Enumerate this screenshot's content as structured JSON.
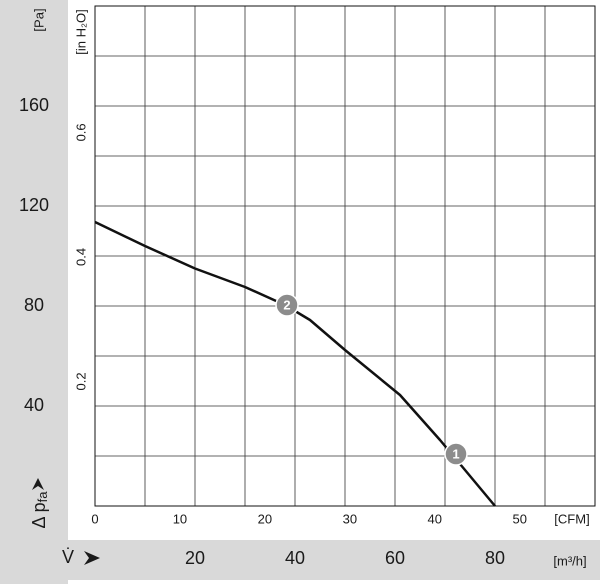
{
  "chart_data": {
    "type": "line",
    "y_label": "[Pa]",
    "y2_label": "[in H₂O]",
    "x_label": "[m³/h]",
    "x2_label": "[CFM]",
    "pressure_symbol": {
      "main": "Δ p",
      "sub": "fa"
    },
    "flow_symbol": "V̇",
    "xlim": [
      0,
      100
    ],
    "ylim": [
      0,
      200
    ],
    "xticks": [
      20,
      40,
      60,
      80
    ],
    "yticks": [
      40,
      80,
      120,
      160
    ],
    "xgrid": [
      0,
      10,
      20,
      30,
      40,
      50,
      60,
      70,
      80,
      90,
      100
    ],
    "ygrid": [
      0,
      20,
      40,
      60,
      80,
      100,
      120,
      140,
      160,
      180,
      200
    ],
    "x2lim": [
      0,
      58.86
    ],
    "x2ticks": [
      0,
      10,
      20,
      30,
      40,
      50
    ],
    "y2lim": [
      0,
      0.803
    ],
    "y2ticks": [
      0.2,
      0.4,
      0.6
    ],
    "series": [
      {
        "color": "#111111",
        "x": [
          0,
          10,
          20,
          30,
          38,
          43,
          50,
          61,
          69,
          80
        ],
        "values": [
          113.6,
          104,
          95,
          87.6,
          80.4,
          74.4,
          62.4,
          44.4,
          26.4,
          0
        ]
      }
    ],
    "annotations": [
      {
        "label": "2",
        "x": 38.4,
        "y": 80.4
      },
      {
        "label": "1",
        "x": 72.2,
        "y": 20.8
      }
    ]
  }
}
